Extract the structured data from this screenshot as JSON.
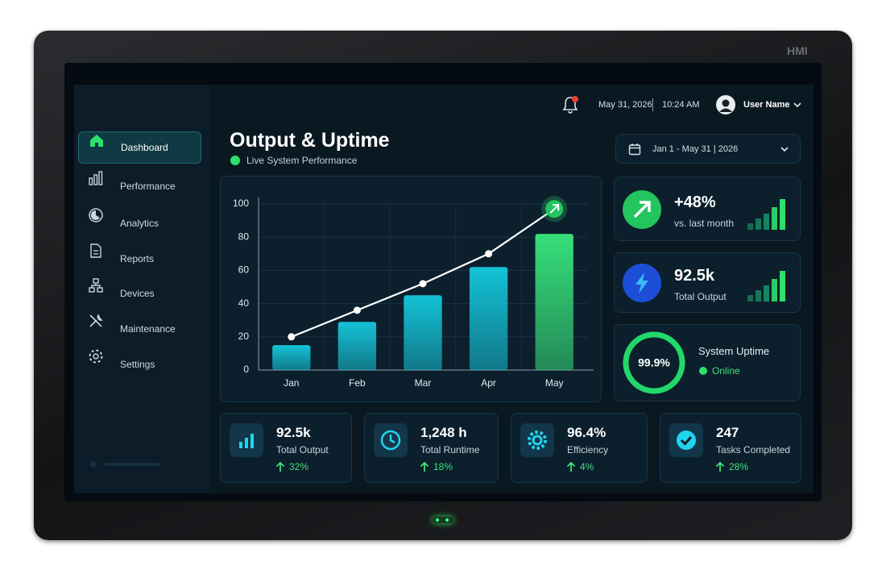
{
  "device_label": "HMI",
  "header": {
    "date": "May 31, 2026",
    "time": "10:24 AM",
    "user": "User Name"
  },
  "sidebar": {
    "items": [
      "Dashboard",
      "Performance",
      "Analytics",
      "Reports",
      "Devices",
      "Maintenance",
      "Settings"
    ],
    "active": 0
  },
  "page": {
    "title": "Output & Uptime",
    "subtitle": "Live System Performance",
    "date_range": "Jan 1 - May 31 | 2026"
  },
  "chart_data": {
    "type": "bar",
    "categories": [
      "Jan",
      "Feb",
      "Mar",
      "Apr",
      "May"
    ],
    "series": [
      {
        "type": "bar",
        "colors": [
          "#14c2d6",
          "#14c2d6",
          "#14c2d6",
          "#14c2d6",
          "#36e07a"
        ],
        "values": [
          15,
          29,
          45,
          62,
          82
        ]
      },
      {
        "type": "line",
        "color": "#ffffff",
        "values": [
          20,
          36,
          52,
          70,
          97
        ]
      }
    ],
    "ylim": [
      0,
      100
    ],
    "yticks": [
      0,
      20,
      40,
      60,
      80,
      100
    ],
    "grid": true
  },
  "kpis": [
    {
      "value": "+48%",
      "label": "vs. last month",
      "color": "#22c55e"
    },
    {
      "value": "92.5k",
      "label": "Total Output",
      "color": "#1d4ed8"
    }
  ],
  "uptime": {
    "value": 99.9,
    "value_label": "99.9%",
    "label": "System Uptime",
    "status": "Online"
  },
  "stats": [
    {
      "value": "92.5k",
      "label": "Total Output",
      "change": "32%"
    },
    {
      "value": "1,248 h",
      "label": "Total Runtime",
      "change": "18%"
    },
    {
      "value": "96.4%",
      "label": "Efficiency",
      "change": "4%"
    },
    {
      "value": "247",
      "label": "Tasks Completed",
      "change": "28%"
    }
  ]
}
